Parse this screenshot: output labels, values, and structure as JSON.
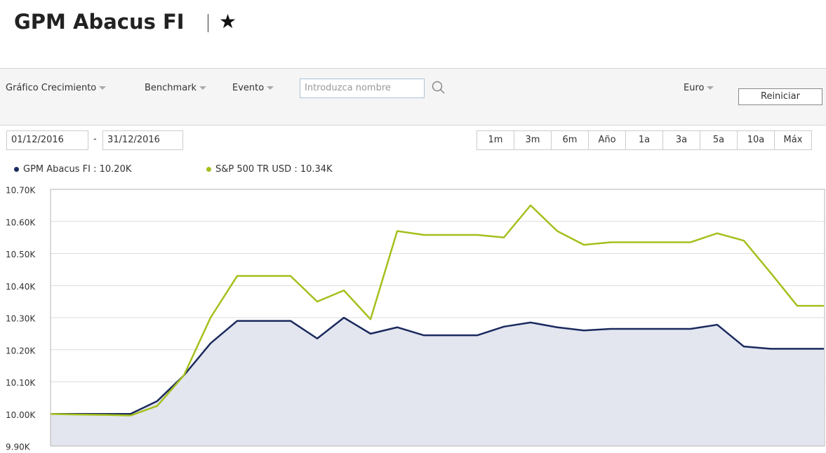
{
  "header": {
    "title": "GPM Abacus FI",
    "star": "★"
  },
  "toolbar": {
    "menus": [
      "Gráfico Crecimiento",
      "Benchmark",
      "Evento"
    ],
    "search_placeholder": "Introduzca nombre ",
    "currency": "Euro",
    "reset": "Reiniciar"
  },
  "date_range": {
    "start": "01/12/2016",
    "separator": "-",
    "end": "31/12/2016"
  },
  "periods": [
    "1m",
    "3m",
    "6m",
    "Año",
    "1a",
    "3a",
    "5a",
    "10a",
    "Máx"
  ],
  "chart_data": {
    "type": "line",
    "categories": [
      null,
      null,
      null,
      null,
      null,
      null,
      null,
      null,
      null,
      null,
      null,
      null,
      null,
      null,
      null,
      null,
      null,
      null,
      null,
      null,
      null,
      null,
      null,
      null,
      null,
      null,
      null,
      null,
      null,
      null
    ],
    "series": [
      {
        "name": "GPM Abacus FI : 10.20K",
        "color": "#1b2a5e",
        "area_color": "#e3e6ef",
        "values": [
          10.0,
          10.0,
          10.0,
          10.0,
          10.04,
          10.12,
          10.22,
          10.29,
          10.29,
          10.29,
          10.235,
          10.3,
          10.25,
          10.27,
          10.245,
          10.245,
          10.245,
          10.272,
          10.285,
          10.27,
          10.26,
          10.265,
          10.265,
          10.265,
          10.265,
          10.278,
          10.21,
          10.203,
          10.203,
          10.203
        ]
      },
      {
        "name": "S&P 500 TR USD : 10.34K",
        "color": "#a5bf1c",
        "values": [
          10.0,
          9.998,
          9.997,
          9.995,
          10.025,
          10.12,
          10.3,
          10.43,
          10.43,
          10.43,
          10.35,
          10.385,
          10.295,
          10.57,
          10.558,
          10.558,
          10.558,
          10.55,
          10.65,
          10.57,
          10.527,
          10.535,
          10.535,
          10.535,
          10.535,
          10.563,
          10.54,
          10.44,
          10.337,
          10.337
        ]
      }
    ],
    "ylim": [
      9.9,
      10.7
    ],
    "yticks": [
      {
        "value": 9.9,
        "label": "9.90K"
      },
      {
        "value": 10.0,
        "label": "10.00K"
      },
      {
        "value": 10.1,
        "label": "10.10K"
      },
      {
        "value": 10.2,
        "label": "10.20K"
      },
      {
        "value": 10.3,
        "label": "10.30K"
      },
      {
        "value": 10.4,
        "label": "10.40K"
      },
      {
        "value": 10.5,
        "label": "10.50K"
      },
      {
        "value": 10.6,
        "label": "10.60K"
      },
      {
        "value": 10.7,
        "label": "10.70K"
      }
    ],
    "grid": true
  }
}
